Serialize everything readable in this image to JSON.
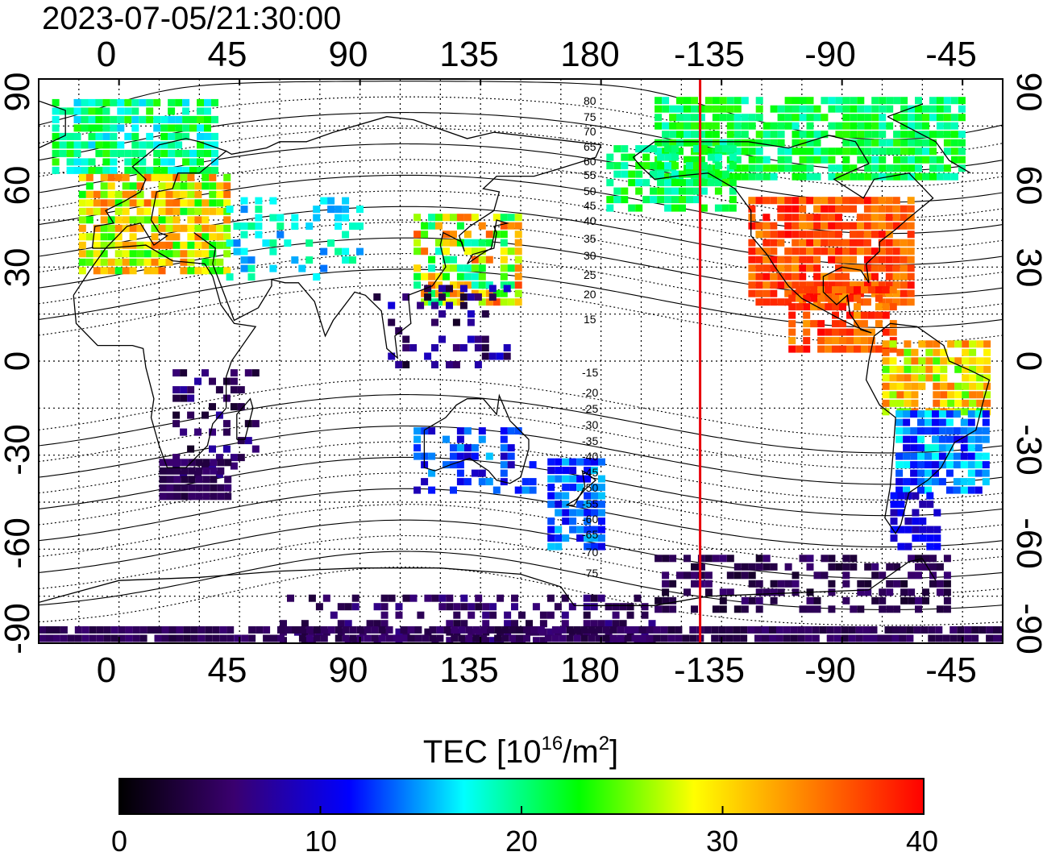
{
  "timestamp": "2023-07-05/21:30:00",
  "map": {
    "x_ticks": [
      "0",
      "45",
      "90",
      "135",
      "180",
      "-135",
      "-90",
      "-45"
    ],
    "y_ticks": [
      "90",
      "60",
      "30",
      "0",
      "-30",
      "-60",
      "-90"
    ],
    "north_contour_labels": [
      "80",
      "75",
      "70",
      "65",
      "60",
      "55",
      "50",
      "45",
      "40",
      "35",
      "30",
      "25",
      "20",
      "15"
    ],
    "south_contour_labels": [
      "-15",
      "-20",
      "-25",
      "-30",
      "-35",
      "-40",
      "-45",
      "-50",
      "-55",
      "-60",
      "-65",
      "-70",
      "-75"
    ],
    "terminator_longitude": -143,
    "terminator_color": "#e8000b"
  },
  "colorbar": {
    "title_prefix": "TEC  [10",
    "title_exp1": "16",
    "title_mid": "/m",
    "title_exp2": "2",
    "title_suffix": "]",
    "min": 0,
    "max": 40,
    "ticks": [
      "0",
      "10",
      "20",
      "30",
      "40"
    ],
    "stops": [
      "#000000",
      "#3a006f",
      "#0000ff",
      "#00ffff",
      "#00ff00",
      "#ffff00",
      "#ff8000",
      "#ff0000"
    ]
  }
}
